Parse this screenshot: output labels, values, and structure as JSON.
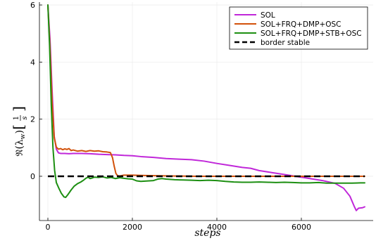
{
  "chart_data": {
    "type": "line",
    "title": "",
    "xlabel": "steps",
    "ylabel": "ℜ(λw) [1/s]",
    "ylabel_parts": {
      "main": "𝔑(λ",
      "sub": "w",
      "close": ")",
      "num": "1",
      "den": "s"
    },
    "xlim": [
      -200,
      7700
    ],
    "ylim": [
      -1.55,
      6.1
    ],
    "xticks": [
      0,
      2000,
      4000,
      6000
    ],
    "xtick_labels": [
      "0",
      "2000",
      "4000",
      "6000"
    ],
    "yticks": [
      0,
      2,
      4,
      6
    ],
    "ytick_labels": [
      "0",
      "2",
      "4",
      "6"
    ],
    "grid": true,
    "legend_position": "top-right",
    "series": [
      {
        "name": "SOL",
        "color": "#c027d9",
        "dash": "solid",
        "points": [
          [
            0,
            6.0
          ],
          [
            50,
            4.8
          ],
          [
            100,
            3.0
          ],
          [
            150,
            1.4
          ],
          [
            200,
            0.95
          ],
          [
            250,
            0.82
          ],
          [
            300,
            0.8
          ],
          [
            400,
            0.8
          ],
          [
            500,
            0.79
          ],
          [
            600,
            0.8
          ],
          [
            800,
            0.8
          ],
          [
            1000,
            0.79
          ],
          [
            1200,
            0.77
          ],
          [
            1400,
            0.76
          ],
          [
            1600,
            0.75
          ],
          [
            1800,
            0.73
          ],
          [
            2000,
            0.72
          ],
          [
            2200,
            0.69
          ],
          [
            2500,
            0.66
          ],
          [
            2800,
            0.62
          ],
          [
            3100,
            0.6
          ],
          [
            3400,
            0.58
          ],
          [
            3700,
            0.53
          ],
          [
            4000,
            0.45
          ],
          [
            4300,
            0.38
          ],
          [
            4600,
            0.31
          ],
          [
            4800,
            0.28
          ],
          [
            5000,
            0.2
          ],
          [
            5300,
            0.13
          ],
          [
            5600,
            0.06
          ],
          [
            5900,
            -0.01
          ],
          [
            6200,
            -0.08
          ],
          [
            6500,
            -0.15
          ],
          [
            6800,
            -0.25
          ],
          [
            7000,
            -0.42
          ],
          [
            7150,
            -0.7
          ],
          [
            7250,
            -1.05
          ],
          [
            7300,
            -1.2
          ],
          [
            7350,
            -1.12
          ],
          [
            7450,
            -1.1
          ],
          [
            7500,
            -1.07
          ]
        ]
      },
      {
        "name": "SOL+FRQ+DMP+OSC",
        "color": "#d2510a",
        "dash": "solid",
        "points": [
          [
            0,
            6.0
          ],
          [
            50,
            4.5
          ],
          [
            100,
            2.6
          ],
          [
            150,
            1.35
          ],
          [
            200,
            1.02
          ],
          [
            250,
            0.95
          ],
          [
            300,
            0.97
          ],
          [
            350,
            0.93
          ],
          [
            400,
            0.96
          ],
          [
            450,
            0.94
          ],
          [
            500,
            0.97
          ],
          [
            550,
            0.9
          ],
          [
            600,
            0.92
          ],
          [
            700,
            0.88
          ],
          [
            800,
            0.9
          ],
          [
            900,
            0.87
          ],
          [
            1000,
            0.9
          ],
          [
            1100,
            0.88
          ],
          [
            1200,
            0.89
          ],
          [
            1300,
            0.86
          ],
          [
            1400,
            0.85
          ],
          [
            1480,
            0.83
          ],
          [
            1530,
            0.65
          ],
          [
            1570,
            0.35
          ],
          [
            1610,
            0.1
          ],
          [
            1650,
            0.02
          ],
          [
            1700,
            0.01
          ],
          [
            1800,
            0.04
          ],
          [
            2000,
            0.04
          ],
          [
            2200,
            0.03
          ],
          [
            2500,
            0.02
          ],
          [
            3000,
            0.01
          ],
          [
            3500,
            0.0
          ],
          [
            4000,
            0.0
          ],
          [
            5000,
            0.0
          ],
          [
            6000,
            0.0
          ],
          [
            7000,
            0.0
          ],
          [
            7500,
            0.0
          ]
        ]
      },
      {
        "name": "SOL+FRQ+DMP+STB+OSC",
        "color": "#1d8f12",
        "dash": "solid",
        "points": [
          [
            0,
            6.0
          ],
          [
            40,
            4.6
          ],
          [
            80,
            2.5
          ],
          [
            120,
            1.0
          ],
          [
            160,
            0.2
          ],
          [
            200,
            -0.22
          ],
          [
            260,
            -0.42
          ],
          [
            320,
            -0.6
          ],
          [
            380,
            -0.72
          ],
          [
            420,
            -0.74
          ],
          [
            480,
            -0.63
          ],
          [
            550,
            -0.48
          ],
          [
            620,
            -0.35
          ],
          [
            700,
            -0.26
          ],
          [
            780,
            -0.2
          ],
          [
            850,
            -0.13
          ],
          [
            900,
            -0.07
          ],
          [
            950,
            -0.03
          ],
          [
            1000,
            -0.08
          ],
          [
            1050,
            -0.06
          ],
          [
            1100,
            -0.03
          ],
          [
            1200,
            -0.04
          ],
          [
            1300,
            -0.02
          ],
          [
            1400,
            -0.06
          ],
          [
            1500,
            -0.04
          ],
          [
            1600,
            -0.08
          ],
          [
            1700,
            -0.05
          ],
          [
            1800,
            -0.07
          ],
          [
            1900,
            -0.09
          ],
          [
            2000,
            -0.1
          ],
          [
            2100,
            -0.16
          ],
          [
            2200,
            -0.18
          ],
          [
            2300,
            -0.17
          ],
          [
            2400,
            -0.16
          ],
          [
            2500,
            -0.15
          ],
          [
            2600,
            -0.1
          ],
          [
            2700,
            -0.08
          ],
          [
            2800,
            -0.1
          ],
          [
            3000,
            -0.12
          ],
          [
            3200,
            -0.13
          ],
          [
            3400,
            -0.14
          ],
          [
            3600,
            -0.15
          ],
          [
            3800,
            -0.14
          ],
          [
            4000,
            -0.15
          ],
          [
            4200,
            -0.18
          ],
          [
            4400,
            -0.2
          ],
          [
            4600,
            -0.21
          ],
          [
            4800,
            -0.21
          ],
          [
            5000,
            -0.2
          ],
          [
            5200,
            -0.21
          ],
          [
            5400,
            -0.22
          ],
          [
            5600,
            -0.21
          ],
          [
            5800,
            -0.22
          ],
          [
            6000,
            -0.23
          ],
          [
            6200,
            -0.23
          ],
          [
            6400,
            -0.22
          ],
          [
            6600,
            -0.24
          ],
          [
            6800,
            -0.24
          ],
          [
            7000,
            -0.24
          ],
          [
            7200,
            -0.24
          ],
          [
            7400,
            -0.23
          ],
          [
            7500,
            -0.23
          ]
        ]
      },
      {
        "name": "border stable",
        "color": "#000000",
        "dash": "dashed",
        "points": [
          [
            0,
            0.0
          ],
          [
            7500,
            0.0
          ]
        ]
      }
    ]
  }
}
